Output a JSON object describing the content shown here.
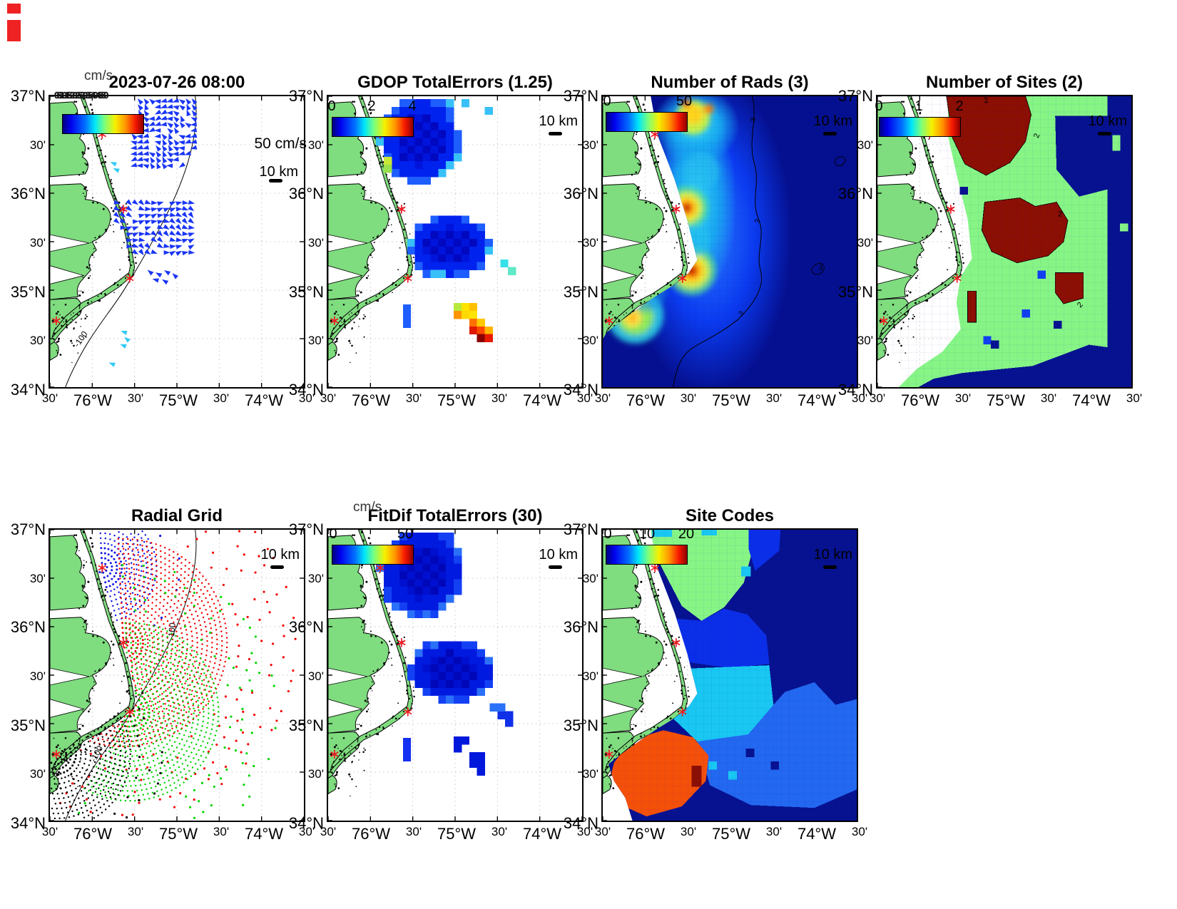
{
  "figure": {
    "background": "#ffffff",
    "colors": {
      "land_green": "#7fdc7f",
      "region_green": "#86f586",
      "navy": "#071290",
      "blue": "#0b2fe8",
      "medium_blue": "#2368f0",
      "cyan": "#19c7f2",
      "orange": "#f4500a",
      "dark_red": "#8c0f04",
      "vector_blue": "#1a36f5",
      "vector_cyan": "#2ec9f5",
      "site_marker_red": "#f01820",
      "jet_colorbar": [
        "#00008f",
        "#0000ff",
        "#0080ff",
        "#00ffff",
        "#80ff80",
        "#ffff00",
        "#ff8000",
        "#ff0000",
        "#8f0000"
      ]
    },
    "axes": {
      "y_tick_labels": [
        "37°N",
        "30'",
        "36°N",
        "30'",
        "35°N",
        "30'",
        "34°N"
      ],
      "x_tick_labels": [
        "30'",
        "76°W",
        "30'",
        "75°W",
        "30'",
        "74°W",
        "30'"
      ]
    },
    "panels": [
      {
        "key": "currents",
        "title": "2023-07-26 08:00",
        "colorbar_label": "cm/s",
        "colorbar_ticks_overlapped": "0 5 10 15 20 25 30 35 40 45 50",
        "velocity_scale_label": "50 cm/s",
        "km_scale_label": "10 km",
        "depth_contour_label": "-100"
      },
      {
        "key": "gdop",
        "title": "GDOP TotalErrors (1.25)",
        "colorbar_ticks": [
          "0",
          "2",
          "4"
        ],
        "km_scale_label": "10 km"
      },
      {
        "key": "num_rads",
        "title": "Number of Rads (3)",
        "colorbar_ticks": [
          "0",
          "50"
        ],
        "km_scale_label": "10 km",
        "contour_label": "3"
      },
      {
        "key": "num_sites",
        "title": "Number of Sites (2)",
        "colorbar_ticks": [
          "0",
          "1",
          "2"
        ],
        "km_scale_label": "10 km",
        "contour_label": "2"
      },
      {
        "key": "radial_grid",
        "title": "Radial Grid",
        "km_scale_label": "10 km",
        "depth_contour_label": "-100",
        "depth_contour_label_2": "100"
      },
      {
        "key": "fitdif",
        "title": "FitDif TotalErrors (30)",
        "colorbar_label": "cm/s",
        "colorbar_ticks": [
          "0",
          "50"
        ],
        "km_scale_label": "10 km"
      },
      {
        "key": "site_codes",
        "title": "Site Codes",
        "colorbar_ticks": [
          "0",
          "10",
          "20"
        ],
        "km_scale_label": "10 km"
      }
    ]
  },
  "chart_data": [
    {
      "type": "map-vector",
      "title": "2023-07-26 08:00",
      "units": "cm/s",
      "colorbar_range": [
        0,
        50
      ],
      "reference_scale": "50 cm/s",
      "distance_scale": "10 km",
      "extent": {
        "lon": [
          "76°30'W",
          "73°30'W"
        ],
        "lat": [
          "34°N",
          "37°N"
        ]
      },
      "radar_sites": 4,
      "notes": "HF-radar surface current vectors (blue/cyan arrows ~5-20 cm/s) in two clusters offshore of the Outer Banks; -100 m isobath; red asterisks mark radar sites"
    },
    {
      "type": "map-heatmap",
      "title": "GDOP TotalErrors (1.25)",
      "colorbar_range": [
        0,
        4
      ],
      "distance_scale": "10 km",
      "extent": {
        "lon": [
          "76°30'W",
          "73°30'W"
        ],
        "lat": [
          "34°N",
          "37°N"
        ]
      },
      "notes": "low GDOP (~1, blue) in two patches north and east of Cape Hatteras; small high-GDOP (3-4, yellow-red) cluster to the southeast; white where no data"
    },
    {
      "type": "map-heatmap",
      "title": "Number of Rads (3)",
      "colorbar_range": [
        0,
        50
      ],
      "distance_scale": "10 km",
      "extent": {
        "lon": [
          "76°30'W",
          "73°30'W"
        ],
        "lat": [
          "34°N",
          "37°N"
        ]
      },
      "contour_level": "3",
      "notes": "radial counts peak (~50, dark red) adjacent to the two Cape Hatteras radar sites; cyan band (~15-25) along coast; navy (<3) offshore; black 3-count contour"
    },
    {
      "type": "map-heatmap",
      "title": "Number of Sites (2)",
      "colorbar_range": [
        0,
        2
      ],
      "distance_scale": "10 km",
      "extent": {
        "lon": [
          "76°30'W",
          "73°30'W"
        ],
        "lat": [
          "34°N",
          "37°N"
        ]
      },
      "values_legend": {
        "navy": 0,
        "light_green": 1,
        "dark_red": 2
      },
      "contour_level": "2",
      "notes": "two-site overlap (dark red) north and east of Cape Hatteras; single-site coverage (green) elsewhere near coast"
    },
    {
      "type": "map-scatter",
      "title": "Radial Grid",
      "distance_scale": "10 km",
      "extent": {
        "lon": [
          "76°30'W",
          "73°30'W"
        ],
        "lat": [
          "34°N",
          "37°N"
        ]
      },
      "series": [
        {
          "name": "northern site radials",
          "color": "blue"
        },
        {
          "name": "Cape Hatteras site radials",
          "color": "red"
        },
        {
          "name": "southern site radials",
          "color": "green"
        },
        {
          "name": "Cape Lookout site radials",
          "color": "black"
        }
      ],
      "notes": "concentric range-ring dot fans centered on each radar site; -100 m isobath"
    },
    {
      "type": "map-heatmap",
      "title": "FitDif TotalErrors (30)",
      "units": "cm/s",
      "colorbar_range": [
        0,
        50
      ],
      "distance_scale": "10 km",
      "extent": {
        "lon": [
          "76°30'W",
          "73°30'W"
        ],
        "lat": [
          "34°N",
          "37°N"
        ]
      },
      "notes": "small fit differences (<10 cm/s, dark blue) in two offshore patches matching the GDOP coverage"
    },
    {
      "type": "map-categorical",
      "title": "Site Codes",
      "colorbar_range": [
        0,
        20
      ],
      "distance_scale": "10 km",
      "extent": {
        "lon": [
          "76°30'W",
          "73°30'W"
        ],
        "lat": [
          "34°N",
          "37°N"
        ]
      },
      "regions": [
        "light green (north nearshore)",
        "navy (offshore/east)",
        "blue (central nearshore)",
        "cyan (central)",
        "medium blue (southeast)",
        "orange (southwest, Raleigh Bay)",
        "dark red (small patch)"
      ]
    }
  ]
}
